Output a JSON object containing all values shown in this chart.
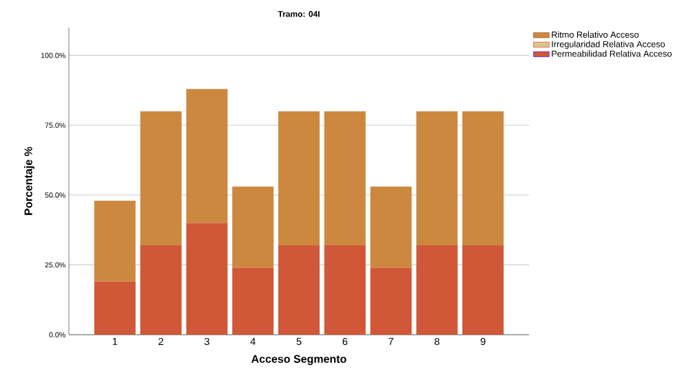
{
  "chart_data": {
    "type": "bar",
    "stacked": true,
    "title": "Tramo: 04I",
    "xlabel": "Acceso Segmento",
    "ylabel": "Porcentaje %",
    "categories": [
      "1",
      "2",
      "3",
      "4",
      "5",
      "6",
      "7",
      "8",
      "9"
    ],
    "series": [
      {
        "name": "Permeabilidad Relativa Acceso",
        "color": "#d05737",
        "values": [
          19,
          32,
          40,
          24,
          32,
          32,
          24,
          32,
          32
        ]
      },
      {
        "name": "Irregularidad Relativa Acceso",
        "color": "#d4c98a",
        "values": [
          0,
          0,
          0,
          0,
          0,
          0,
          0,
          0,
          0
        ]
      },
      {
        "name": "Ritmo Relativo Acceso",
        "color": "#cd8840",
        "values": [
          29,
          48,
          48,
          29,
          48,
          48,
          29,
          48,
          48
        ]
      }
    ],
    "ylim": [
      0,
      110
    ],
    "yticks": [
      {
        "value": 0,
        "label": "0.0%"
      },
      {
        "value": 25,
        "label": "25.0%"
      },
      {
        "value": 50,
        "label": "50.0%"
      },
      {
        "value": 75,
        "label": "75.0%"
      },
      {
        "value": 100,
        "label": "100.0%"
      }
    ],
    "grid": "y",
    "legend": "top right"
  }
}
